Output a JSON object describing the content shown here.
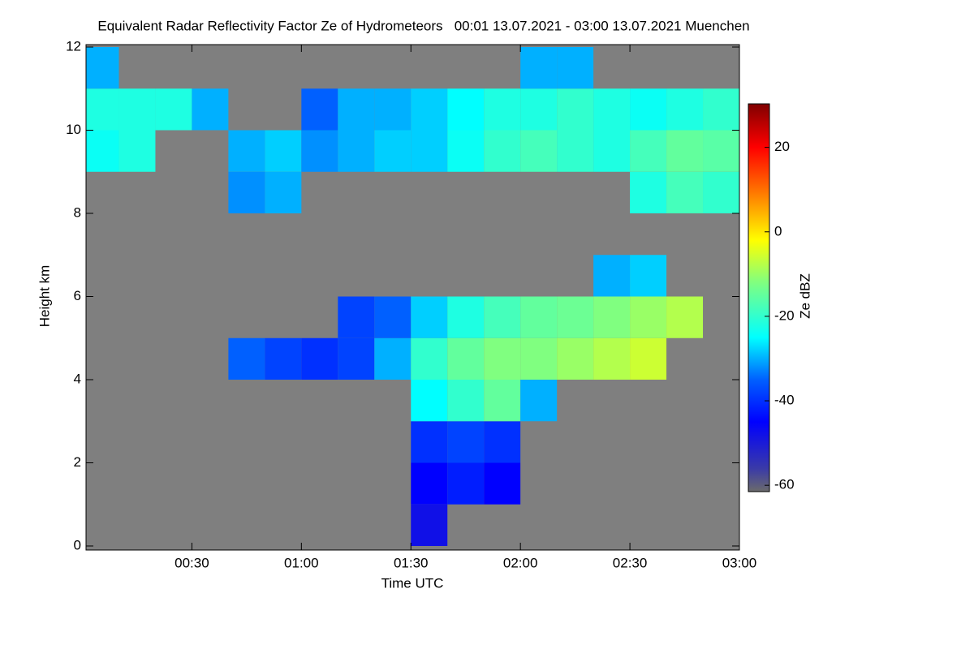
{
  "chart_data": {
    "type": "heatmap",
    "title": "Equivalent Radar Reflectivity Factor Ze of Hydrometeors   00:01 13.07.2021 - 03:00 13.07.2021 Muenchen",
    "x_label": "Time UTC",
    "y_label": "Height km",
    "colorbar_label": "Ze dBZ",
    "xlim": [
      1,
      180
    ],
    "xticks": [
      {
        "value": 30,
        "label": "00:30"
      },
      {
        "value": 60,
        "label": "01:00"
      },
      {
        "value": 90,
        "label": "01:30"
      },
      {
        "value": 120,
        "label": "02:00"
      },
      {
        "value": 150,
        "label": "02:30"
      },
      {
        "value": 180,
        "label": "03:00"
      }
    ],
    "ylim": [
      0,
      12
    ],
    "yticks": [
      0,
      2,
      4,
      6,
      8,
      10,
      12
    ],
    "zlim": [
      -61.5,
      30.3
    ],
    "zticks": [
      20,
      0,
      -20,
      -40,
      -60
    ],
    "background": "#7f7f7f",
    "colorscale": [
      [
        -61.5,
        "#6b6b6b"
      ],
      [
        -56,
        "#3a3aa8"
      ],
      [
        -45,
        "#0000ff"
      ],
      [
        -35,
        "#0060ff"
      ],
      [
        -25,
        "#00ffff"
      ],
      [
        -12,
        "#80ff80"
      ],
      [
        -2,
        "#ffff00"
      ],
      [
        10,
        "#ff7000"
      ],
      [
        20,
        "#ff0000"
      ],
      [
        30.3,
        "#800000"
      ]
    ],
    "xbins": [
      1,
      10,
      20,
      30,
      40,
      50,
      60,
      70,
      80,
      90,
      100,
      110,
      120,
      130,
      140,
      150,
      160,
      170,
      180
    ],
    "ybins": [
      0,
      1,
      2,
      3,
      4,
      5,
      6,
      7,
      8,
      9,
      10,
      11,
      12
    ],
    "z": [
      [
        null,
        null,
        null,
        null,
        null,
        null,
        null,
        null,
        null,
        -48,
        null,
        null,
        null,
        null,
        null,
        null,
        null,
        null
      ],
      [
        null,
        null,
        null,
        null,
        null,
        null,
        null,
        null,
        null,
        -45,
        -42,
        -45,
        null,
        null,
        null,
        null,
        null,
        null
      ],
      [
        null,
        null,
        null,
        null,
        null,
        null,
        null,
        null,
        null,
        -40,
        -38,
        -40,
        null,
        null,
        null,
        null,
        null,
        null
      ],
      [
        null,
        null,
        null,
        null,
        null,
        null,
        null,
        null,
        null,
        -25,
        -20,
        -15,
        -30,
        null,
        null,
        null,
        null,
        null
      ],
      [
        null,
        null,
        null,
        null,
        -35,
        -38,
        -40,
        -38,
        -30,
        -20,
        -15,
        -12,
        -12,
        -10,
        -8,
        -6,
        null,
        null
      ],
      [
        null,
        null,
        null,
        null,
        null,
        null,
        null,
        -38,
        -35,
        -28,
        -22,
        -18,
        -15,
        -14,
        -12,
        -10,
        -8,
        null
      ],
      [
        null,
        null,
        null,
        null,
        null,
        null,
        null,
        null,
        null,
        null,
        null,
        null,
        null,
        null,
        -30,
        -28,
        null,
        null
      ],
      [
        null,
        null,
        null,
        null,
        null,
        null,
        null,
        null,
        null,
        null,
        null,
        null,
        null,
        null,
        null,
        null,
        null,
        null
      ],
      [
        null,
        null,
        null,
        null,
        -32,
        -30,
        null,
        null,
        null,
        null,
        null,
        null,
        null,
        null,
        null,
        -22,
        -18,
        -20
      ],
      [
        -24,
        -22,
        null,
        null,
        -30,
        -28,
        -32,
        -30,
        -28,
        -28,
        -24,
        -20,
        -18,
        -20,
        -22,
        -18,
        -15,
        -16
      ],
      [
        -22,
        -22,
        -22,
        -30,
        null,
        null,
        -35,
        -30,
        -30,
        -28,
        -25,
        -22,
        -22,
        -20,
        -22,
        -24,
        -22,
        -20
      ],
      [
        -30,
        null,
        null,
        null,
        null,
        null,
        null,
        null,
        null,
        null,
        null,
        null,
        -30,
        -30,
        null,
        null,
        null,
        null
      ]
    ]
  }
}
